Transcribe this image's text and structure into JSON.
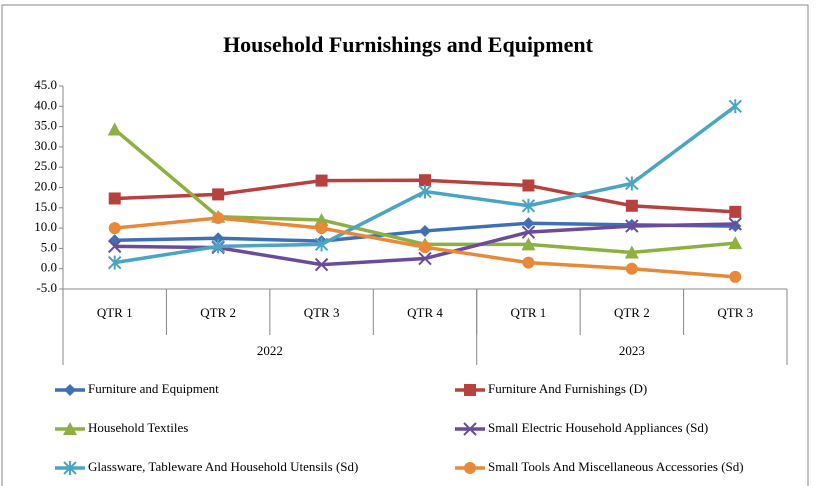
{
  "chart_data": {
    "type": "line",
    "title": "Household Furnishings and Equipment",
    "categories": [
      "QTR 1",
      "QTR 2",
      "QTR 3",
      "QTR 4",
      "QTR 1",
      "QTR 2",
      "QTR 3"
    ],
    "groups": [
      {
        "label": "2022",
        "span": 4
      },
      {
        "label": "2023",
        "span": 3
      }
    ],
    "ylim": [
      -5,
      45
    ],
    "yticks": [
      {
        "value": -5,
        "label": "-5.0"
      },
      {
        "value": 0,
        "label": "0.0"
      },
      {
        "value": 5,
        "label": "5.0"
      },
      {
        "value": 10,
        "label": "10.0"
      },
      {
        "value": 15,
        "label": "15.0"
      },
      {
        "value": 20,
        "label": "20.0"
      },
      {
        "value": 25,
        "label": "25.0"
      },
      {
        "value": 30,
        "label": "30.0"
      },
      {
        "value": 35,
        "label": "35.0"
      },
      {
        "value": 40,
        "label": "40.0"
      },
      {
        "value": 45,
        "label": "45.0"
      }
    ],
    "series": [
      {
        "name": "Furniture and Equipment",
        "color": "#3f6fb5",
        "marker": "diamond",
        "values": [
          7,
          7.5,
          6.8,
          9.3,
          11.2,
          10.8,
          10.5
        ]
      },
      {
        "name": "Furniture And Furnishings (D)",
        "color": "#b7413e",
        "marker": "square",
        "values": [
          17.3,
          18.3,
          21.7,
          21.8,
          20.5,
          15.5,
          14
        ]
      },
      {
        "name": "Household Textiles",
        "color": "#8db040",
        "marker": "triangle",
        "values": [
          34.3,
          12.8,
          12,
          6,
          6,
          4,
          6.3
        ]
      },
      {
        "name": "Small Electric Household Appliances (Sd)",
        "color": "#6b4c9a",
        "marker": "x",
        "values": [
          5.5,
          5.2,
          1,
          2.5,
          9,
          10.5,
          11
        ]
      },
      {
        "name": "Glassware, Tableware And Household Utensils (Sd)",
        "color": "#4aa5c2",
        "marker": "star",
        "values": [
          1.5,
          5.5,
          6,
          19,
          15.5,
          21,
          40
        ]
      },
      {
        "name": "Small Tools And Miscellaneous Accessories (Sd)",
        "color": "#e8893a",
        "marker": "circle",
        "values": [
          10,
          12.5,
          10,
          5.3,
          1.5,
          0,
          -2
        ]
      }
    ]
  }
}
